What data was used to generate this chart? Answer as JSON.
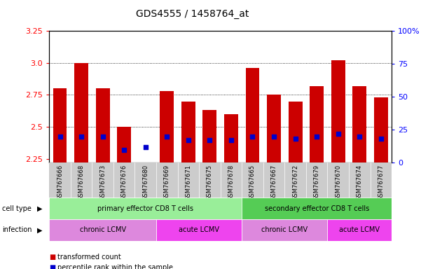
{
  "title": "GDS4555 / 1458764_at",
  "samples": [
    "GSM767666",
    "GSM767668",
    "GSM767673",
    "GSM767676",
    "GSM767680",
    "GSM767669",
    "GSM767671",
    "GSM767675",
    "GSM767678",
    "GSM767665",
    "GSM767667",
    "GSM767672",
    "GSM767679",
    "GSM767670",
    "GSM767674",
    "GSM767677"
  ],
  "transformed_count": [
    2.8,
    3.0,
    2.8,
    2.5,
    2.22,
    2.78,
    2.7,
    2.63,
    2.6,
    2.96,
    2.75,
    2.7,
    2.82,
    3.02,
    2.82,
    2.73
  ],
  "percentile_rank_pct": [
    20,
    20,
    20,
    10,
    12,
    20,
    17,
    17,
    17,
    20,
    20,
    18,
    20,
    22,
    20,
    18
  ],
  "ylim": [
    2.22,
    3.25
  ],
  "y2lim": [
    0,
    100
  ],
  "yticks": [
    2.25,
    2.5,
    2.75,
    3.0,
    3.25
  ],
  "y2ticks": [
    0,
    25,
    50,
    75,
    100
  ],
  "bar_color": "#cc0000",
  "percentile_color": "#0000cc",
  "cell_type_groups": [
    {
      "label": "primary effector CD8 T cells",
      "start": 0,
      "end": 9,
      "color": "#99ee99"
    },
    {
      "label": "secondary effector CD8 T cells",
      "start": 9,
      "end": 16,
      "color": "#55cc55"
    }
  ],
  "infection_groups": [
    {
      "label": "chronic LCMV",
      "start": 0,
      "end": 5,
      "color": "#dd88dd"
    },
    {
      "label": "acute LCMV",
      "start": 5,
      "end": 9,
      "color": "#ee44ee"
    },
    {
      "label": "chronic LCMV",
      "start": 9,
      "end": 13,
      "color": "#dd88dd"
    },
    {
      "label": "acute LCMV",
      "start": 13,
      "end": 16,
      "color": "#ee44ee"
    }
  ],
  "legend_items": [
    {
      "color": "#cc0000",
      "label": "transformed count"
    },
    {
      "color": "#0000cc",
      "label": "percentile rank within the sample"
    }
  ],
  "bar_width": 0.65,
  "base_value": 2.22,
  "tick_bg_color": "#cccccc",
  "label_left_text": [
    "cell type",
    "infection"
  ],
  "arrow_char": "▶"
}
